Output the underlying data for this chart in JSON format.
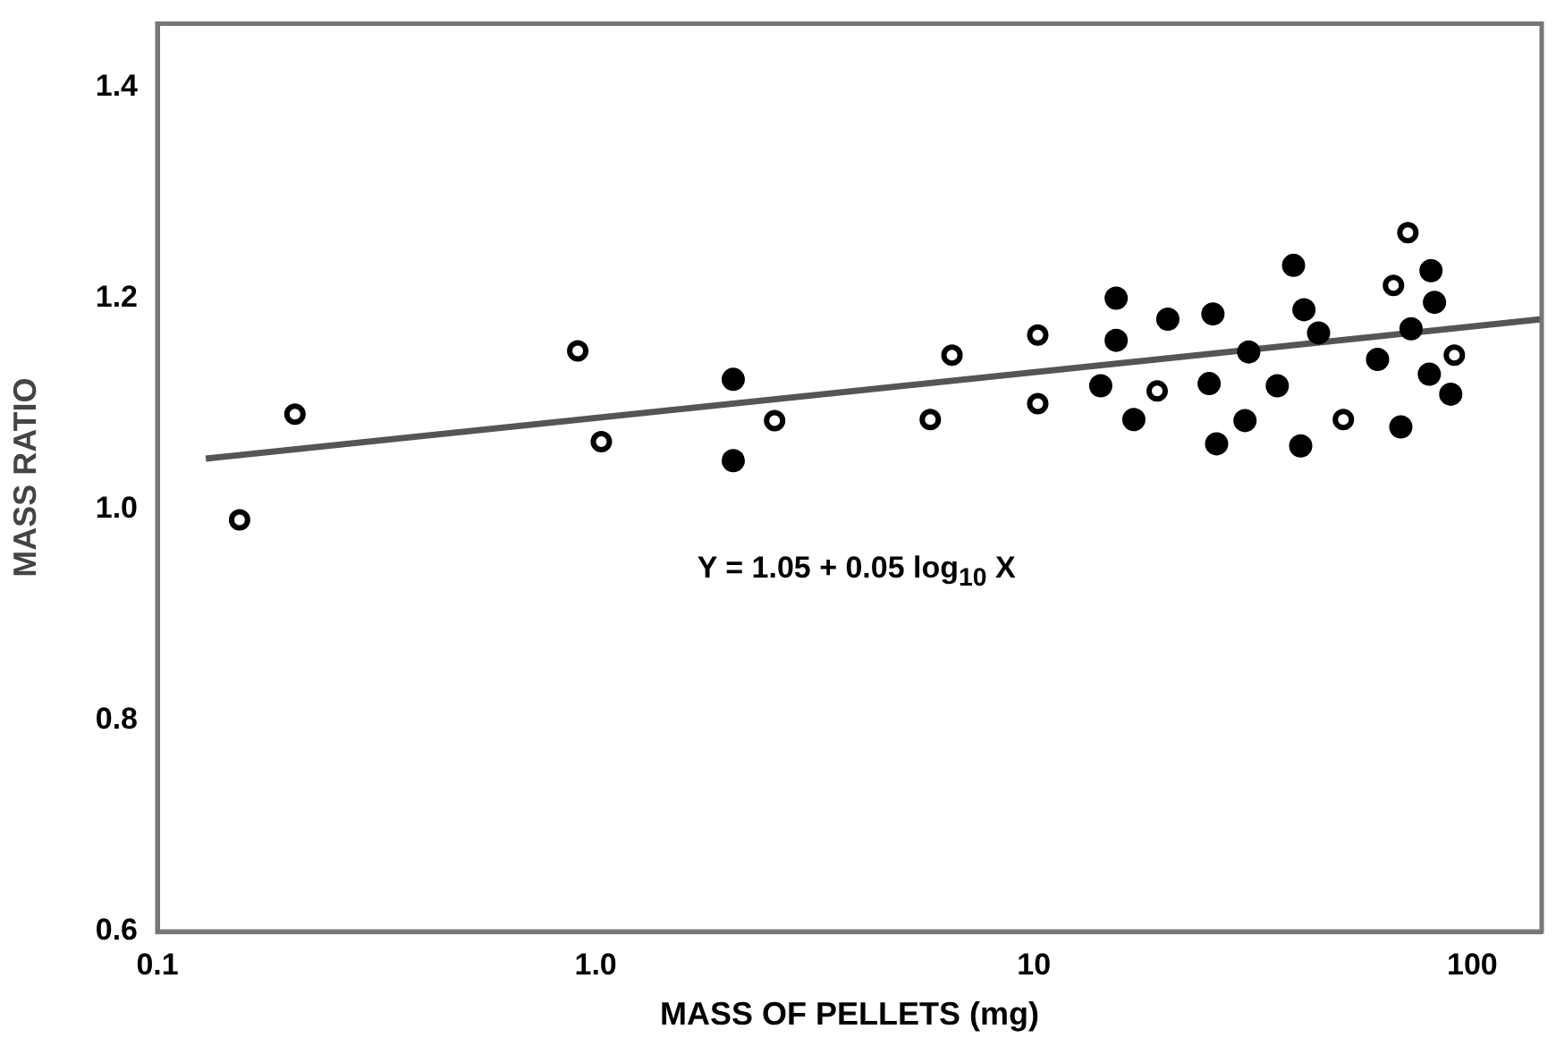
{
  "chart_data": {
    "type": "scatter",
    "xlabel": "MASS OF PELLETS (mg)",
    "ylabel": "MASS RATIO",
    "log": "x",
    "xlim": [
      0.1,
      144
    ],
    "ylim": [
      0.6,
      1.46
    ],
    "xticks": [
      0.1,
      {
        "value": 1,
        "label": "1.0"
      },
      10,
      100
    ],
    "yticks": [
      0.6,
      0.8,
      {
        "value": 1,
        "label": "1.0"
      },
      1.2,
      1.4
    ],
    "grid": false,
    "legend": false,
    "marker": "circle",
    "annotations": [
      "Y = 1.05 + 0.05 log$_{10}$ X"
    ],
    "series": [
      {
        "color": "#000000",
        "x": [
          0.154,
          0.206,
          0.91,
          1.03,
          2.56,
          5.8,
          6.5,
          10.2,
          10.2,
          19.1,
          50.8,
          66.1,
          71.3,
          91
        ],
        "values": [
          0.99,
          1.09,
          1.15,
          1.064,
          1.084,
          1.085,
          1.146,
          1.165,
          1.1,
          1.112,
          1.085,
          1.212,
          1.262,
          1.146
        ]
      },
      {
        "color": "#000000",
        "x": [
          2.06,
          2.06,
          15.4,
          15.4,
          14.2,
          16.9,
          20.2,
          25.6,
          25.1,
          26.1,
          30.3,
          30.9,
          35.9,
          39.1,
          41.3,
          40.6,
          44.6,
          60.8,
          68.7,
          72.5,
          80.5,
          82,
          79.8,
          89.3
        ],
        "values": [
          1.046,
          1.123,
          1.2,
          1.16,
          1.117,
          1.085,
          1.18,
          1.185,
          1.119,
          1.062,
          1.084,
          1.149,
          1.117,
          1.231,
          1.189,
          1.06,
          1.167,
          1.142,
          1.078,
          1.171,
          1.226,
          1.196,
          1.128,
          1.109
        ]
      },
      {
        "type": "line",
        "color": "#555555",
        "marker": "none",
        "x": [
          0.129,
          144
        ],
        "values": [
          1.048,
          1.18
        ]
      }
    ]
  }
}
